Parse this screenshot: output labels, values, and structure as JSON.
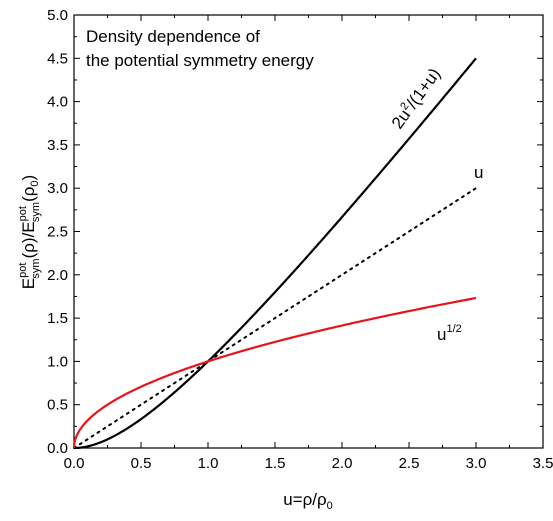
{
  "chart_data": {
    "type": "line",
    "title": "",
    "annotation": {
      "line1": "Density dependence of",
      "line2": "the potential symmetry energy"
    },
    "xlabel": {
      "prefix": "u=ρ/ρ",
      "sub": "0"
    },
    "ylabel": {
      "E1": "E",
      "sup1": "pot",
      "sub1": "sym",
      "mid": "(ρ)/E",
      "sup2": "pot",
      "sub2": "sym",
      "open2": "(ρ",
      "sub3": "0",
      "close2": ")"
    },
    "xlim": [
      0,
      3.5
    ],
    "ylim": [
      0,
      5
    ],
    "x_ticks": [
      "0.0",
      "0.5",
      "1.0",
      "1.5",
      "2.0",
      "2.5",
      "3.0",
      "3.5"
    ],
    "y_ticks": [
      "0.0",
      "0.5",
      "1.0",
      "1.5",
      "2.0",
      "2.5",
      "3.0",
      "3.5",
      "4.0",
      "4.5",
      "5.0"
    ],
    "grid": false,
    "series": [
      {
        "name": "2u²/(1+u)",
        "label_base": "2u",
        "label_sup": "2",
        "label_rest": "/(1+u)",
        "formula": "2*u*u/(1+u)",
        "color": "#000000",
        "style": "solid",
        "x": [
          0,
          0.1,
          0.2,
          0.3,
          0.4,
          0.5,
          0.6,
          0.7,
          0.8,
          0.9,
          1.0,
          1.25,
          1.5,
          1.75,
          2.0,
          2.25,
          2.5,
          2.75,
          3.0
        ],
        "y": [
          0,
          0.018,
          0.067,
          0.138,
          0.229,
          0.333,
          0.45,
          0.576,
          0.711,
          0.853,
          1.0,
          1.389,
          1.8,
          2.227,
          2.667,
          3.115,
          3.571,
          4.033,
          4.5
        ]
      },
      {
        "name": "u",
        "label_base": "u",
        "formula": "u",
        "color": "#000000",
        "style": "dotted",
        "x": [
          0,
          3.0
        ],
        "y": [
          0,
          3.0
        ]
      },
      {
        "name": "u^1/2",
        "label_base": "u",
        "label_sup": "1/2",
        "formula": "sqrt(u)",
        "color": "#e8141b",
        "style": "solid",
        "x": [
          0,
          0.01,
          0.05,
          0.1,
          0.2,
          0.3,
          0.5,
          0.75,
          1.0,
          1.5,
          2.0,
          2.5,
          3.0
        ],
        "y": [
          0,
          0.1,
          0.224,
          0.316,
          0.447,
          0.548,
          0.707,
          0.866,
          1.0,
          1.225,
          1.414,
          1.581,
          1.732
        ]
      }
    ]
  }
}
